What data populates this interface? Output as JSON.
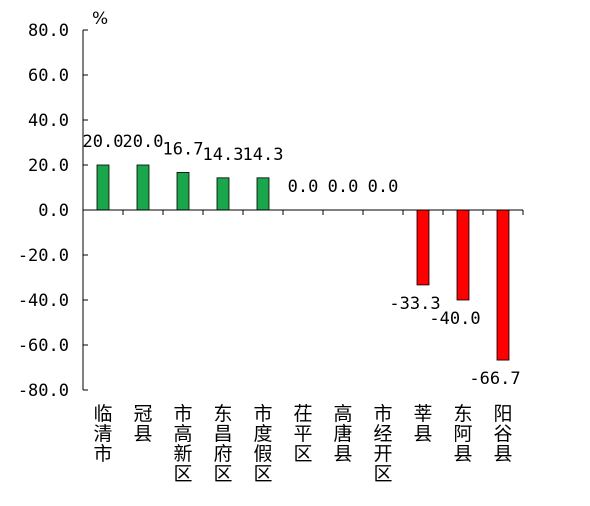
{
  "chart_data": {
    "type": "bar",
    "categories": [
      "临清市",
      "冠县",
      "市高新区",
      "东昌府区",
      "市度假区",
      "茌平区",
      "高唐县",
      "市经开区",
      "莘县",
      "东阿县",
      "阳谷县"
    ],
    "values": [
      20.0,
      20.0,
      16.7,
      14.3,
      14.3,
      0.0,
      0.0,
      0.0,
      -33.3,
      -40.0,
      -66.7
    ],
    "data_labels": [
      "20.0",
      "20.0",
      "16.7",
      "14.3",
      "14.3",
      "0.0",
      "0.0",
      "0.0",
      "-33.3",
      "-40.0",
      "-66.7"
    ],
    "unit": "%",
    "ylim": [
      -80,
      80
    ],
    "yticks": [
      80,
      60,
      40,
      20,
      0,
      -20,
      -40,
      -60,
      -80
    ],
    "ytick_labels": [
      "80.0",
      "60.0",
      "40.0",
      "20.0",
      "0.0",
      "-20.0",
      "-40.0",
      "-60.0",
      "-80.0"
    ],
    "title": "",
    "xlabel": "",
    "ylabel": "",
    "grid": false,
    "legend": "none",
    "colors": {
      "positive": "#1aa64a",
      "negative": "#ff0000",
      "axis": "#000000"
    }
  }
}
